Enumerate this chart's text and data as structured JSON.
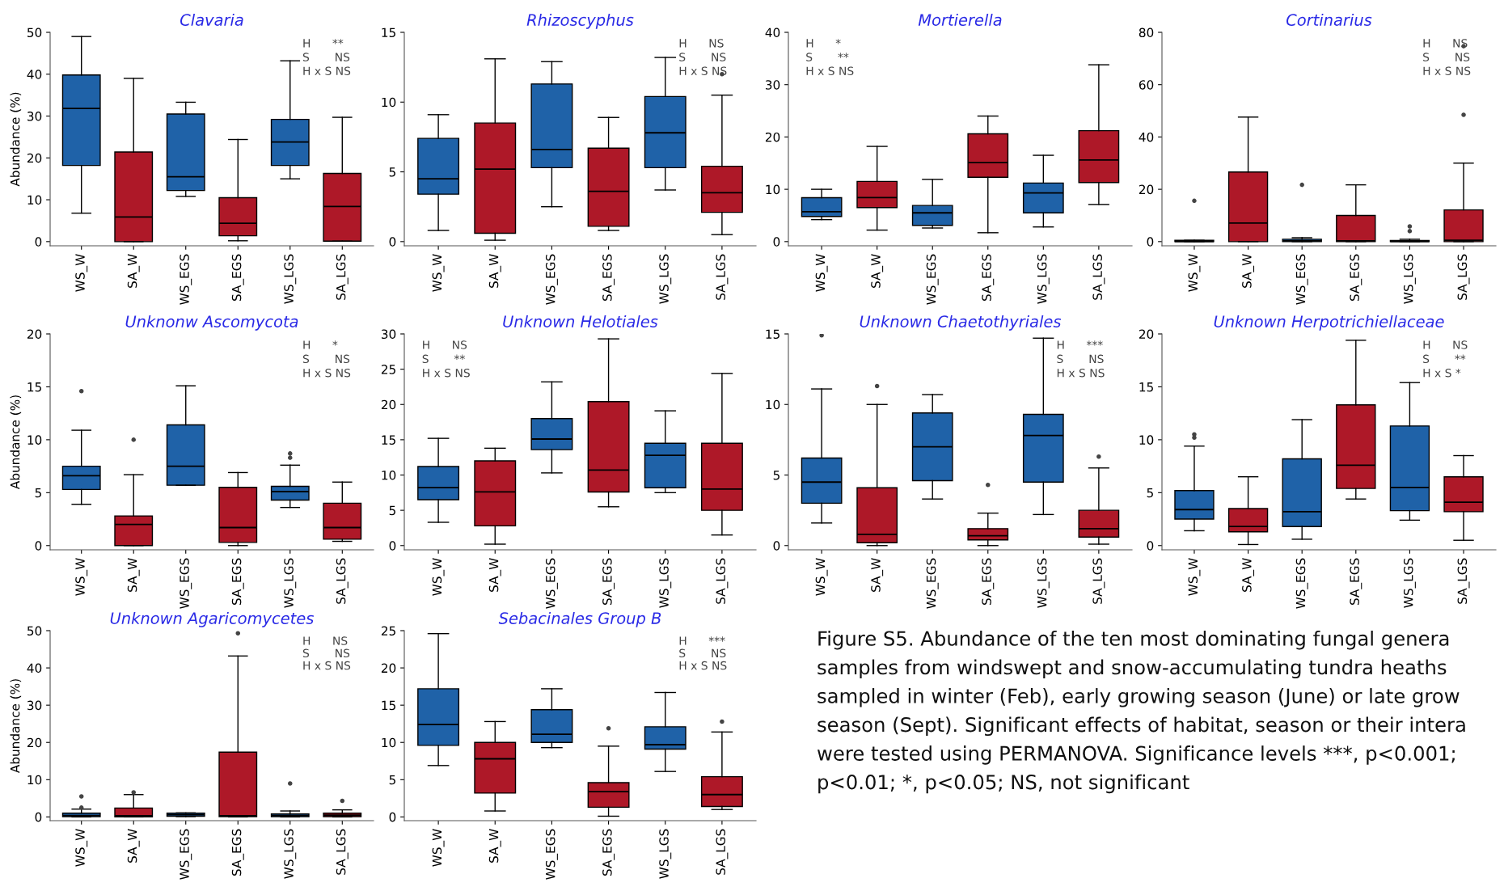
{
  "chart_data": [
    {
      "type": "box",
      "title": "Clavaria",
      "ylabel": "Abundance (%)",
      "categories": [
        "WS_W",
        "SA_W",
        "WS_EGS",
        "SA_EGS",
        "WS_LGS",
        "SA_LGS"
      ],
      "colors": [
        "#1f62a8",
        "#ae1828",
        "#1f62a8",
        "#ae1828",
        "#1f62a8",
        "#ae1828"
      ],
      "ylim": [
        -1,
        50
      ],
      "yticks": [
        0,
        10,
        20,
        30,
        40,
        50
      ],
      "annotations": [
        "H      **",
        "S       NS",
        "H x S NS"
      ],
      "boxes": [
        {
          "low": 6.8,
          "q1": 18.2,
          "median": 31.8,
          "q3": 39.8,
          "high": 49
        },
        {
          "low": 0,
          "q1": 0,
          "median": 5.9,
          "q3": 21.4,
          "high": 39
        },
        {
          "low": 10.8,
          "q1": 12.2,
          "median": 15.5,
          "q3": 30.5,
          "high": 33.3
        },
        {
          "low": 0.2,
          "q1": 1.4,
          "median": 4.4,
          "q3": 10.5,
          "high": 24.4
        },
        {
          "low": 15,
          "q1": 18.2,
          "median": 23.8,
          "q3": 29.2,
          "high": 43.2
        },
        {
          "low": 0.1,
          "q1": 0.1,
          "median": 8.4,
          "q3": 16.3,
          "high": 29.7
        }
      ]
    },
    {
      "type": "box",
      "title": "Rhizoscyphus",
      "categories": [
        "WS_W",
        "SA_W",
        "WS_EGS",
        "SA_EGS",
        "WS_LGS",
        "SA_LGS"
      ],
      "colors": [
        "#1f62a8",
        "#ae1828",
        "#1f62a8",
        "#ae1828",
        "#1f62a8",
        "#ae1828"
      ],
      "ylim": [
        -0.3,
        15
      ],
      "yticks": [
        0,
        5,
        10,
        15
      ],
      "annotations": [
        "H      NS",
        "S       NS",
        "H x S NS"
      ],
      "boxes": [
        {
          "low": 0.8,
          "q1": 3.4,
          "median": 4.5,
          "q3": 7.4,
          "high": 9.1
        },
        {
          "low": 0.1,
          "q1": 0.6,
          "median": 5.2,
          "q3": 8.5,
          "high": 13.1
        },
        {
          "low": 2.5,
          "q1": 5.3,
          "median": 6.6,
          "q3": 11.3,
          "high": 12.9
        },
        {
          "low": 0.8,
          "q1": 1.1,
          "median": 3.6,
          "q3": 6.7,
          "high": 8.9
        },
        {
          "low": 3.7,
          "q1": 5.3,
          "median": 7.8,
          "q3": 10.4,
          "high": 13.2
        },
        {
          "low": 0.5,
          "q1": 2.1,
          "median": 3.5,
          "q3": 5.4,
          "high": 10.5,
          "outliers": [
            12
          ]
        }
      ]
    },
    {
      "type": "box",
      "title": "Mortierella",
      "categories": [
        "WS_W",
        "SA_W",
        "WS_EGS",
        "SA_EGS",
        "WS_LGS",
        "SA_LGS"
      ],
      "colors": [
        "#1f62a8",
        "#ae1828",
        "#1f62a8",
        "#ae1828",
        "#1f62a8",
        "#ae1828"
      ],
      "ylim": [
        -0.8,
        40
      ],
      "yticks": [
        0,
        10,
        20,
        30,
        40
      ],
      "annotations": [
        "H      *",
        "S       **",
        "H x S NS"
      ],
      "boxes": [
        {
          "low": 4.2,
          "q1": 4.8,
          "median": 5.7,
          "q3": 8.4,
          "high": 10
        },
        {
          "low": 2.2,
          "q1": 6.5,
          "median": 8.4,
          "q3": 11.5,
          "high": 18.2
        },
        {
          "low": 2.6,
          "q1": 3.1,
          "median": 5.5,
          "q3": 6.9,
          "high": 11.9
        },
        {
          "low": 1.7,
          "q1": 12.3,
          "median": 15.1,
          "q3": 20.6,
          "high": 24
        },
        {
          "low": 2.8,
          "q1": 5.5,
          "median": 9.3,
          "q3": 11.2,
          "high": 16.5
        },
        {
          "low": 7.1,
          "q1": 11.3,
          "median": 15.6,
          "q3": 21.2,
          "high": 33.8
        }
      ]
    },
    {
      "type": "box",
      "title": "Cortinarius",
      "categories": [
        "WS_W",
        "SA_W",
        "WS_EGS",
        "SA_EGS",
        "WS_LGS",
        "SA_LGS"
      ],
      "colors": [
        "#1f62a8",
        "#ae1828",
        "#1f62a8",
        "#ae1828",
        "#1f62a8",
        "#ae1828"
      ],
      "ylim": [
        -1.6,
        80
      ],
      "yticks": [
        0,
        20,
        40,
        60,
        80
      ],
      "annotations": [
        "H      NS",
        "S       NS",
        "H x S NS"
      ],
      "boxes": [
        {
          "low": 0,
          "q1": 0,
          "median": 0.1,
          "q3": 0.5,
          "high": 0.5,
          "outliers": [
            15.6
          ]
        },
        {
          "low": 0,
          "q1": 0,
          "median": 7.1,
          "q3": 26.6,
          "high": 47.6
        },
        {
          "low": 0,
          "q1": 0,
          "median": 0.3,
          "q3": 0.9,
          "high": 1.5,
          "outliers": [
            21.7
          ]
        },
        {
          "low": 0,
          "q1": 0,
          "median": 0.3,
          "q3": 10,
          "high": 21.7
        },
        {
          "low": 0,
          "q1": 0,
          "median": 0.1,
          "q3": 0.4,
          "high": 0.9,
          "outliers": [
            4,
            5.8
          ]
        },
        {
          "low": 0,
          "q1": 0,
          "median": 0.5,
          "q3": 12.1,
          "high": 30,
          "outliers": [
            48.5,
            74.7
          ]
        }
      ]
    },
    {
      "type": "box",
      "title": "Unknonw Ascomycota",
      "ylabel": "Abundance (%)",
      "categories": [
        "WS_W",
        "SA_W",
        "WS_EGS",
        "SA_EGS",
        "WS_LGS",
        "SA_LGS"
      ],
      "colors": [
        "#1f62a8",
        "#ae1828",
        "#1f62a8",
        "#ae1828",
        "#1f62a8",
        "#ae1828"
      ],
      "ylim": [
        -0.4,
        20
      ],
      "yticks": [
        0,
        5,
        10,
        15,
        20
      ],
      "annotations": [
        "H      *",
        "S       NS",
        "H x S NS"
      ],
      "boxes": [
        {
          "low": 3.9,
          "q1": 5.3,
          "median": 6.6,
          "q3": 7.5,
          "high": 10.9,
          "outliers": [
            14.6
          ]
        },
        {
          "low": 0,
          "q1": 0,
          "median": 2,
          "q3": 2.8,
          "high": 6.7,
          "outliers": [
            10
          ]
        },
        {
          "low": 5.7,
          "q1": 5.7,
          "median": 7.5,
          "q3": 11.4,
          "high": 15.1
        },
        {
          "low": 0,
          "q1": 0.3,
          "median": 1.7,
          "q3": 5.5,
          "high": 6.9
        },
        {
          "low": 3.6,
          "q1": 4.3,
          "median": 5.1,
          "q3": 5.6,
          "high": 7.6,
          "outliers": [
            8.3,
            8.7
          ]
        },
        {
          "low": 0.4,
          "q1": 0.6,
          "median": 1.7,
          "q3": 4,
          "high": 6
        }
      ]
    },
    {
      "type": "box",
      "title": "Unknown Helotiales",
      "categories": [
        "WS_W",
        "SA_W",
        "WS_EGS",
        "SA_EGS",
        "WS_LGS",
        "SA_LGS"
      ],
      "colors": [
        "#1f62a8",
        "#ae1828",
        "#1f62a8",
        "#ae1828",
        "#1f62a8",
        "#ae1828"
      ],
      "ylim": [
        -0.6,
        30
      ],
      "yticks": [
        0,
        5,
        10,
        15,
        20,
        25,
        30
      ],
      "annotations": [
        "H      NS",
        "S       **",
        "H x S NS"
      ],
      "boxes": [
        {
          "low": 3.3,
          "q1": 6.5,
          "median": 8.2,
          "q3": 11.2,
          "high": 15.2
        },
        {
          "low": 0.2,
          "q1": 2.8,
          "median": 7.6,
          "q3": 12,
          "high": 13.8
        },
        {
          "low": 10.3,
          "q1": 13.6,
          "median": 15.1,
          "q3": 18,
          "high": 23.2
        },
        {
          "low": 5.5,
          "q1": 7.6,
          "median": 10.7,
          "q3": 20.4,
          "high": 29.3
        },
        {
          "low": 7.5,
          "q1": 8.2,
          "median": 12.8,
          "q3": 14.5,
          "high": 19.1
        },
        {
          "low": 1.5,
          "q1": 5,
          "median": 8,
          "q3": 14.5,
          "high": 24.4
        }
      ]
    },
    {
      "type": "box",
      "title": "Unknown Chaetothyriales",
      "categories": [
        "WS_W",
        "SA_W",
        "WS_EGS",
        "SA_EGS",
        "WS_LGS",
        "SA_LGS"
      ],
      "colors": [
        "#1f62a8",
        "#ae1828",
        "#1f62a8",
        "#ae1828",
        "#1f62a8",
        "#ae1828"
      ],
      "ylim": [
        -0.3,
        15
      ],
      "yticks": [
        0,
        5,
        10,
        15
      ],
      "annotations": [
        "H      ***",
        "S       NS",
        "H x S NS"
      ],
      "boxes": [
        {
          "low": 1.6,
          "q1": 3,
          "median": 4.5,
          "q3": 6.2,
          "high": 11.1,
          "outliers": [
            14.9
          ]
        },
        {
          "low": 0,
          "q1": 0.2,
          "median": 0.8,
          "q3": 4.1,
          "high": 10,
          "outliers": [
            11.3
          ]
        },
        {
          "low": 3.3,
          "q1": 4.6,
          "median": 7,
          "q3": 9.4,
          "high": 10.7
        },
        {
          "low": 0,
          "q1": 0.4,
          "median": 0.7,
          "q3": 1.2,
          "high": 2.3,
          "outliers": [
            4.3
          ]
        },
        {
          "low": 2.2,
          "q1": 4.5,
          "median": 7.8,
          "q3": 9.3,
          "high": 14.7
        },
        {
          "low": 0.1,
          "q1": 0.6,
          "median": 1.2,
          "q3": 2.5,
          "high": 5.5,
          "outliers": [
            6.3
          ]
        }
      ]
    },
    {
      "type": "box",
      "title": "Unknown Herpotrichiellaceae",
      "categories": [
        "WS_W",
        "SA_W",
        "WS_EGS",
        "SA_EGS",
        "WS_LGS",
        "SA_LGS"
      ],
      "colors": [
        "#1f62a8",
        "#ae1828",
        "#1f62a8",
        "#ae1828",
        "#1f62a8",
        "#ae1828"
      ],
      "ylim": [
        -0.4,
        20
      ],
      "yticks": [
        0,
        5,
        10,
        15,
        20
      ],
      "annotations": [
        "H      NS",
        "S       **",
        "H x S *"
      ],
      "boxes": [
        {
          "low": 1.4,
          "q1": 2.5,
          "median": 3.4,
          "q3": 5.2,
          "high": 9.4,
          "outliers": [
            10.2,
            10.5
          ]
        },
        {
          "low": 0.1,
          "q1": 1.3,
          "median": 1.8,
          "q3": 3.5,
          "high": 6.5
        },
        {
          "low": 0.6,
          "q1": 1.8,
          "median": 3.2,
          "q3": 8.2,
          "high": 11.9
        },
        {
          "low": 4.4,
          "q1": 5.4,
          "median": 7.6,
          "q3": 13.3,
          "high": 19.4
        },
        {
          "low": 2.4,
          "q1": 3.3,
          "median": 5.5,
          "q3": 11.3,
          "high": 15.4
        },
        {
          "low": 0.5,
          "q1": 3.2,
          "median": 4.1,
          "q3": 6.5,
          "high": 8.5
        }
      ]
    },
    {
      "type": "box",
      "title": "Unknown Agaricomycetes",
      "ylabel": "Abundance (%)",
      "categories": [
        "WS_W",
        "SA_W",
        "WS_EGS",
        "SA_EGS",
        "WS_LGS",
        "SA_LGS"
      ],
      "colors": [
        "#1f62a8",
        "#ae1828",
        "#1f62a8",
        "#ae1828",
        "#1f62a8",
        "#ae1828"
      ],
      "ylim": [
        -1,
        50
      ],
      "yticks": [
        0,
        10,
        20,
        30,
        40,
        50
      ],
      "annotations": [
        "H      NS",
        "S       NS",
        "H x S NS"
      ],
      "boxes": [
        {
          "low": 0,
          "q1": 0.1,
          "median": 0.4,
          "q3": 1,
          "high": 2.1,
          "outliers": [
            2.5,
            5.5
          ]
        },
        {
          "low": 0,
          "q1": 0,
          "median": 0.3,
          "q3": 2.4,
          "high": 6,
          "outliers": [
            6.6
          ]
        },
        {
          "low": 0.1,
          "q1": 0.2,
          "median": 0.6,
          "q3": 1,
          "high": 1.1
        },
        {
          "low": 0,
          "q1": 0.1,
          "median": 0.3,
          "q3": 17.4,
          "high": 43.2,
          "outliers": [
            49.3
          ]
        },
        {
          "low": 0,
          "q1": 0.1,
          "median": 0.4,
          "q3": 0.8,
          "high": 1.6,
          "outliers": [
            9
          ]
        },
        {
          "low": 0,
          "q1": 0.1,
          "median": 0.5,
          "q3": 1,
          "high": 1.9,
          "outliers": [
            4.3
          ]
        }
      ]
    },
    {
      "type": "box",
      "title": "Sebacinales Group B",
      "categories": [
        "WS_W",
        "SA_W",
        "WS_EGS",
        "SA_EGS",
        "WS_LGS",
        "SA_LGS"
      ],
      "colors": [
        "#1f62a8",
        "#ae1828",
        "#1f62a8",
        "#ae1828",
        "#1f62a8",
        "#ae1828"
      ],
      "ylim": [
        -0.5,
        25
      ],
      "yticks": [
        0,
        5,
        10,
        15,
        20,
        25
      ],
      "annotations": [
        "H      ***",
        "S       NS",
        "H x S NS"
      ],
      "boxes": [
        {
          "low": 6.9,
          "q1": 9.6,
          "median": 12.4,
          "q3": 17.2,
          "high": 24.6
        },
        {
          "low": 0.8,
          "q1": 3.2,
          "median": 7.8,
          "q3": 10,
          "high": 12.8
        },
        {
          "low": 9.3,
          "q1": 10,
          "median": 11.1,
          "q3": 14.4,
          "high": 17.2
        },
        {
          "low": 0.1,
          "q1": 1.3,
          "median": 3.4,
          "q3": 4.6,
          "high": 9.5,
          "outliers": [
            11.9
          ]
        },
        {
          "low": 6.1,
          "q1": 9.1,
          "median": 9.7,
          "q3": 12.1,
          "high": 16.7
        },
        {
          "low": 1,
          "q1": 1.4,
          "median": 3,
          "q3": 5.4,
          "high": 11.4,
          "outliers": [
            12.8
          ]
        }
      ]
    },
    {
      "type": "other",
      "annotations": [
        "Figure S5. Abundance of the ten most dominating fungal genera\nsamples from windswept and snow-accumulating tundra heaths\nsampled in winter (Feb), early growing season (June) or late grow\nseason (Sept). Significant effects of habitat, season or their intera\nwere tested using PERMANOVA. Significance levels ***, p<0.001;\np<0.01; *, p<0.05; NS, not significant"
      ]
    }
  ]
}
